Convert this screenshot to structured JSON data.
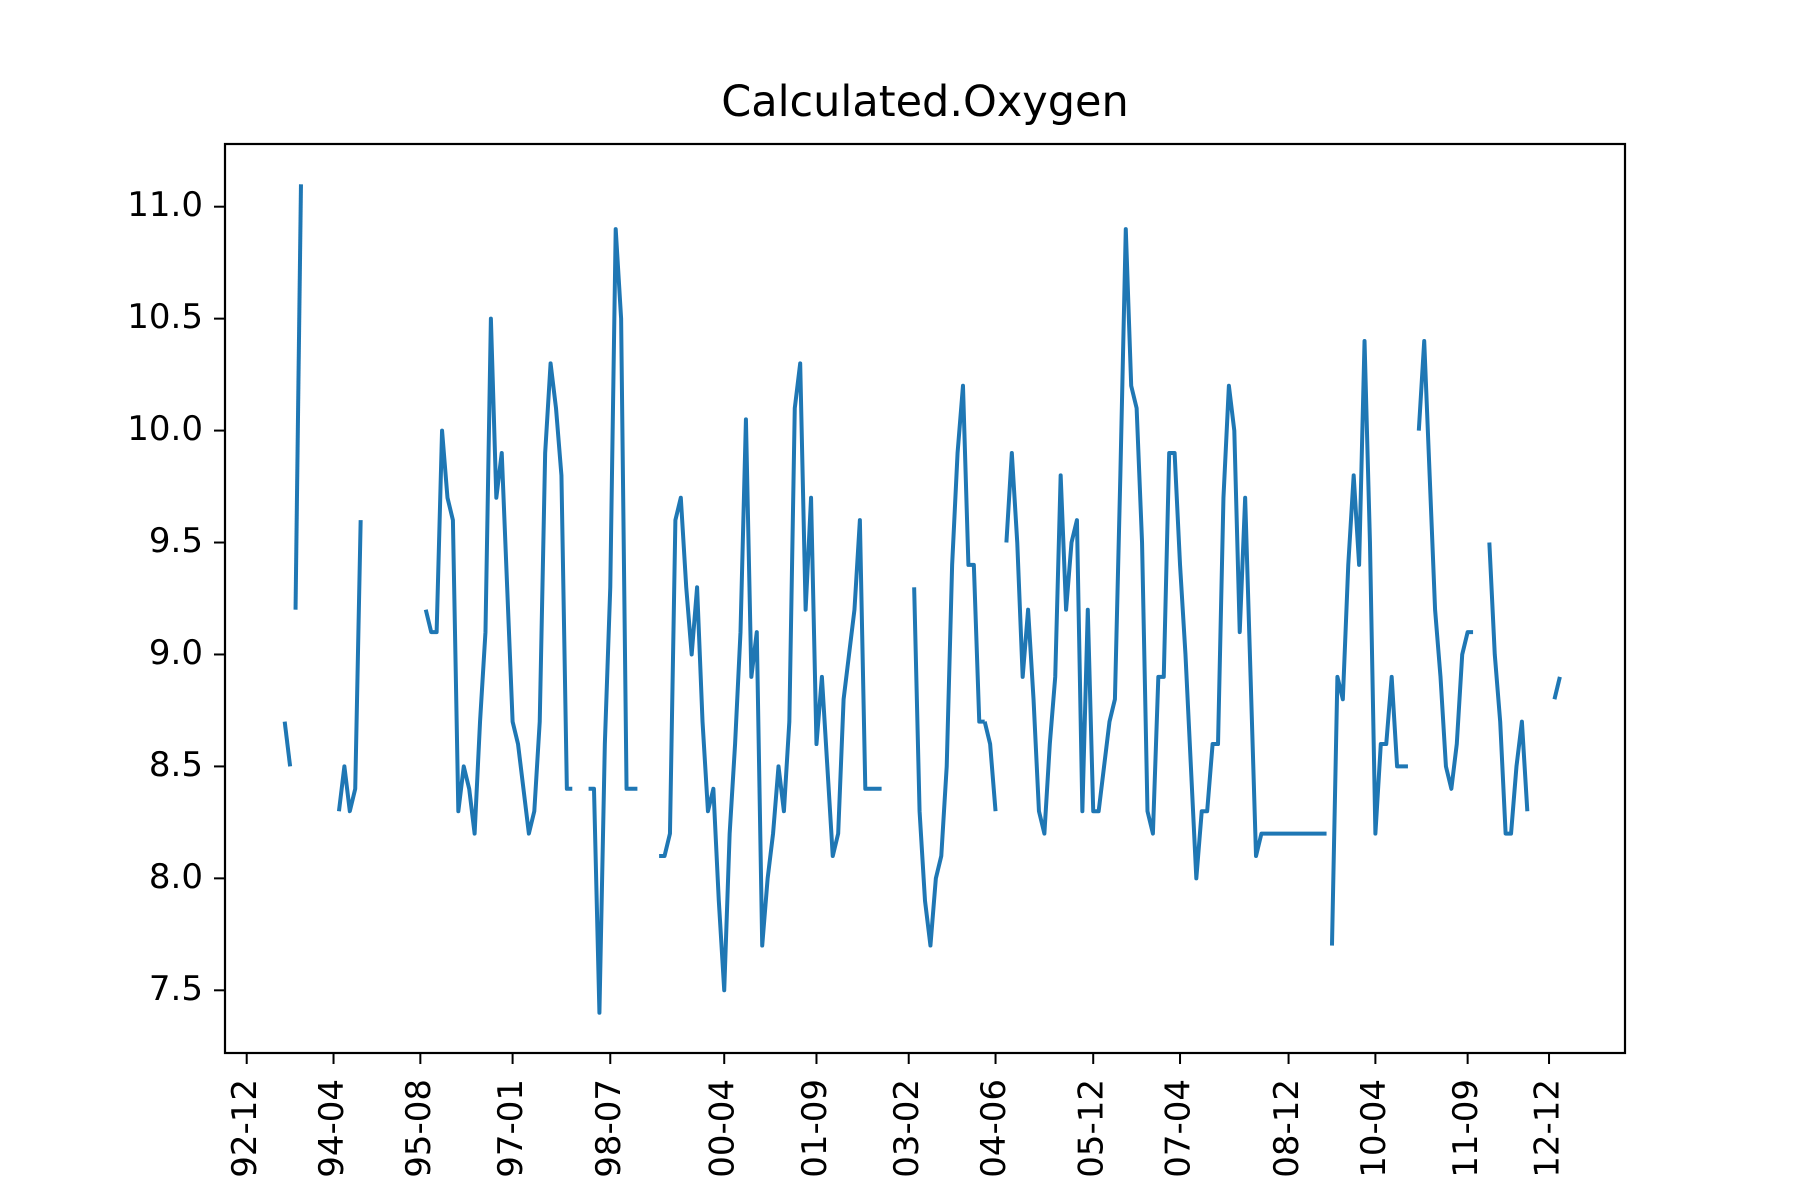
{
  "chart_data": {
    "type": "line",
    "title": "Calculated.Oxygen",
    "xlabel": "",
    "ylabel": "",
    "ylim": [
      7.22,
      11.28
    ],
    "xlim": [
      "1992-08",
      "2014-02"
    ],
    "grid": false,
    "legend": "none",
    "series_color": "#1f77b4",
    "x_ticks": [
      "1992-12",
      "1994-04",
      "1995-08",
      "1997-01",
      "1998-07",
      "2000-04",
      "2001-09",
      "2003-02",
      "2004-06",
      "2005-12",
      "2007-04",
      "2008-12",
      "2010-04",
      "2011-09",
      "2012-12"
    ],
    "x_tick_labels": [
      "92-12",
      "94-04",
      "95-08",
      "97-01",
      "98-07",
      "00-04",
      "01-09",
      "03-02",
      "04-06",
      "05-12",
      "07-04",
      "08-12",
      "10-04",
      "11-09",
      "12-12"
    ],
    "y_ticks": [
      7.5,
      8.0,
      8.5,
      9.0,
      9.5,
      10.0,
      10.5,
      11.0
    ],
    "y_tick_labels": [
      "7.5",
      "8.0",
      "8.5",
      "9.0",
      "9.5",
      "10.0",
      "10.5",
      "11.0"
    ],
    "segments": [
      {
        "x": [
          "1993-07",
          "1993-08"
        ],
        "y": [
          8.7,
          8.5
        ]
      },
      {
        "x": [
          "1993-09",
          "1993-10"
        ],
        "y": [
          9.2,
          11.1
        ]
      },
      {
        "x": [
          "1994-05",
          "1994-06",
          "1994-07",
          "1994-08",
          "1994-09"
        ],
        "y": [
          8.3,
          8.5,
          8.3,
          8.4,
          9.6
        ]
      },
      {
        "x": [
          "1995-09",
          "1995-10",
          "1995-11",
          "1995-12",
          "1996-01",
          "1996-02",
          "1996-03",
          "1996-04",
          "1996-05",
          "1996-06",
          "1996-07",
          "1996-08",
          "1996-09",
          "1996-10",
          "1996-11",
          "1996-12",
          "1997-01",
          "1997-02",
          "1997-03",
          "1997-04",
          "1997-05",
          "1997-06",
          "1997-07",
          "1997-08",
          "1997-09",
          "1997-10",
          "1997-11",
          "1997-12"
        ],
        "y": [
          9.2,
          9.1,
          9.1,
          10.0,
          9.7,
          9.6,
          8.3,
          8.5,
          8.4,
          8.2,
          8.7,
          9.1,
          10.5,
          9.7,
          9.9,
          9.3,
          8.7,
          8.6,
          8.4,
          8.2,
          8.3,
          8.7,
          9.9,
          10.3,
          10.1,
          9.8,
          8.4,
          8.4
        ]
      },
      {
        "x": [
          "1998-03",
          "1998-04",
          "1998-05",
          "1998-06",
          "1998-07",
          "1998-08",
          "1998-09",
          "1998-10",
          "1998-11",
          "1998-12"
        ],
        "y": [
          8.4,
          8.4,
          7.4,
          8.6,
          9.3,
          10.9,
          10.5,
          8.4,
          8.4,
          8.4
        ]
      },
      {
        "x": [
          "1999-04",
          "1999-05",
          "1999-06",
          "1999-07",
          "1999-08",
          "1999-09",
          "1999-10",
          "1999-11",
          "1999-12",
          "2000-01",
          "2000-02",
          "2000-03",
          "2000-04",
          "2000-05",
          "2000-06",
          "2000-07",
          "2000-08",
          "2000-09",
          "2000-10",
          "2000-11",
          "2000-12",
          "2001-01",
          "2001-02",
          "2001-03",
          "2001-04",
          "2001-05",
          "2001-06",
          "2001-07",
          "2001-08",
          "2001-09",
          "2001-10",
          "2001-11",
          "2001-12",
          "2002-01",
          "2002-02",
          "2002-03",
          "2002-04",
          "2002-05",
          "2002-06",
          "2002-07",
          "2002-08",
          "2002-09"
        ],
        "y": [
          8.1,
          8.1,
          8.2,
          9.6,
          9.7,
          9.3,
          9.0,
          9.3,
          8.7,
          8.3,
          8.4,
          7.9,
          7.5,
          8.2,
          8.6,
          9.1,
          10.05,
          8.9,
          9.1,
          7.7,
          8.0,
          8.2,
          8.5,
          8.3,
          8.7,
          10.1,
          10.3,
          9.2,
          9.7,
          8.6,
          8.9,
          8.5,
          8.1,
          8.2,
          8.8,
          9.0,
          9.2,
          9.6,
          8.4,
          8.4,
          8.4,
          8.4
        ]
      },
      {
        "x": [
          "2003-03",
          "2003-04",
          "2003-05",
          "2003-06",
          "2003-07",
          "2003-08",
          "2003-09",
          "2003-10",
          "2003-11",
          "2003-12",
          "2004-01",
          "2004-02",
          "2004-03",
          "2004-04"
        ],
        "y": [
          9.3,
          8.3,
          7.9,
          7.7,
          8.0,
          8.1,
          8.5,
          9.4,
          9.9,
          10.2,
          9.4,
          9.4,
          8.7,
          8.7
        ]
      },
      {
        "x": [
          "2004-04",
          "2004-05",
          "2004-06"
        ],
        "y": [
          8.7,
          8.6,
          8.3
        ]
      },
      {
        "x": [
          "2004-08",
          "2004-09",
          "2004-10",
          "2004-11",
          "2004-12",
          "2005-01",
          "2005-02",
          "2005-03",
          "2005-04",
          "2005-05",
          "2005-06",
          "2005-07",
          "2005-08",
          "2005-09",
          "2005-10",
          "2005-11",
          "2005-12",
          "2006-01",
          "2006-02",
          "2006-03",
          "2006-04",
          "2006-05",
          "2006-06",
          "2006-07",
          "2006-08",
          "2006-09",
          "2006-10",
          "2006-11",
          "2006-12",
          "2007-01",
          "2007-02",
          "2007-03",
          "2007-04",
          "2007-05",
          "2007-06",
          "2007-07",
          "2007-08",
          "2007-09",
          "2007-10",
          "2007-11",
          "2007-12",
          "2008-01",
          "2008-02",
          "2008-03",
          "2008-04",
          "2008-05",
          "2008-06",
          "2008-07",
          "2008-08",
          "2008-09",
          "2008-10",
          "2008-11",
          "2008-12",
          "2009-01",
          "2009-02",
          "2009-03",
          "2009-04",
          "2009-05",
          "2009-06",
          "2009-07"
        ],
        "y": [
          9.5,
          9.9,
          9.5,
          8.9,
          9.2,
          8.8,
          8.3,
          8.2,
          8.6,
          8.9,
          9.8,
          9.2,
          9.5,
          9.6,
          8.3,
          9.2,
          8.3,
          8.3,
          8.5,
          8.7,
          8.8,
          9.8,
          10.9,
          10.2,
          10.1,
          9.5,
          8.3,
          8.2,
          8.9,
          8.9,
          9.9,
          9.9,
          9.4,
          9.0,
          8.5,
          8.0,
          8.3,
          8.3,
          8.6,
          8.6,
          9.7,
          10.2,
          10.0,
          9.1,
          9.7,
          8.9,
          8.1,
          8.2,
          8.2,
          8.2,
          8.2,
          8.2,
          8.2,
          8.2,
          8.2,
          8.2,
          8.2,
          8.2,
          8.2,
          8.2
        ]
      },
      {
        "x": [
          "2009-08",
          "2009-09",
          "2009-10",
          "2009-11",
          "2009-12",
          "2010-01",
          "2010-02",
          "2010-03",
          "2010-04",
          "2010-05",
          "2010-06",
          "2010-07",
          "2010-08",
          "2010-09",
          "2010-10"
        ],
        "y": [
          7.7,
          8.9,
          8.8,
          9.4,
          9.8,
          9.4,
          10.4,
          9.5,
          8.2,
          8.6,
          8.6,
          8.9,
          8.5,
          8.5,
          8.5
        ]
      },
      {
        "x": [
          "2010-12",
          "2011-01",
          "2011-02",
          "2011-03",
          "2011-04",
          "2011-05",
          "2011-06",
          "2011-07",
          "2011-08",
          "2011-09",
          "2011-10"
        ],
        "y": [
          10.0,
          10.4,
          9.8,
          9.2,
          8.9,
          8.5,
          8.4,
          8.6,
          9.0,
          9.1,
          9.1
        ]
      },
      {
        "x": [
          "2012-01",
          "2012-02",
          "2012-03",
          "2012-04",
          "2012-05",
          "2012-06",
          "2012-07",
          "2012-08"
        ],
        "y": [
          9.5,
          9.0,
          8.7,
          8.2,
          8.2,
          8.5,
          8.7,
          8.3
        ]
      },
      {
        "x": [
          "2013-01",
          "2013-02"
        ],
        "y": [
          8.8,
          8.9
        ]
      }
    ]
  }
}
